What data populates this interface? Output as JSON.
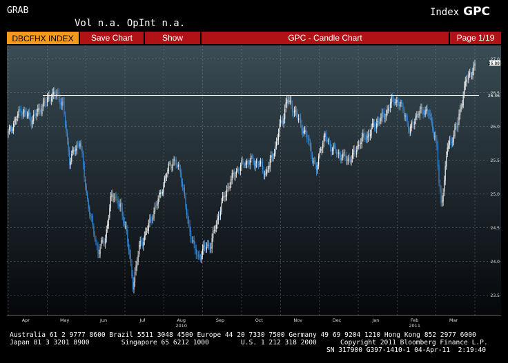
{
  "header": {
    "app_label": "GRAB",
    "security_type": "Index",
    "ticker": "GPC",
    "vol_label": "Vol n.a.",
    "openint_label": "OpInt n.a."
  },
  "toolbar": {
    "ticker_field": "DBCFHX INDEX",
    "save_chart_label": "Save Chart",
    "show_label": "Show",
    "chart_title": "GPC - Candle Chart",
    "page_indicator": "Page 1/19"
  },
  "footer": {
    "line1": "Australia 61 2 9777 8600 Brazil 5511 3048 4500 Europe 44 20 7330 7500 Germany 49 69 9204 1210 Hong Kong 852 2977 6000",
    "line2a": "Japan 81 3 3201 8900        Singapore 65 6212 1000        U.S. 1 212 318 2000",
    "line2b": "Copyright 2011 Bloomberg Finance L.P.",
    "line3": "SN 317900 G397-1410-1 04-Apr-11  2:19:40"
  },
  "colors": {
    "up_candle": "#ffffff",
    "down_candle": "#3b8fe0",
    "title_bar_red": "#b01216",
    "ticker_orange": "#f39a1e",
    "reference_line": "#ffffff"
  },
  "chart_data": {
    "type": "candlestick",
    "title": "GPC - Candle Chart",
    "ylim": [
      23.2,
      27.2
    ],
    "y_ticks": [
      {
        "label": "23.5",
        "value": 23.5
      },
      {
        "label": "24.0",
        "value": 24.0
      },
      {
        "label": "24.5",
        "value": 24.5
      },
      {
        "label": "25.0",
        "value": 25.0
      },
      {
        "label": "25.5",
        "value": 25.5
      },
      {
        "label": "26.0",
        "value": 26.0
      },
      {
        "label": "26.5",
        "value": 26.5
      },
      {
        "label": "27.0",
        "value": 27.0
      }
    ],
    "x_ticks": [
      "Apr",
      "May",
      "Jun",
      "Jul",
      "Aug",
      "Sep",
      "Oct",
      "Nov",
      "Dec",
      "Jan",
      "Feb",
      "Mar"
    ],
    "year_labels": [
      {
        "label": "2010",
        "at_month": "Aug"
      },
      {
        "label": "2011",
        "at_month": "Feb"
      }
    ],
    "reference_line": {
      "value": 26.46,
      "label": "26.46"
    },
    "last_price_label": "26.88",
    "grid": true,
    "anchors": [
      [
        0,
        25.9
      ],
      [
        12,
        26.25
      ],
      [
        22,
        26.1
      ],
      [
        40,
        26.45
      ],
      [
        47,
        26.47
      ],
      [
        52,
        26.3
      ],
      [
        58,
        25.5
      ],
      [
        68,
        25.8
      ],
      [
        74,
        25.0
      ],
      [
        80,
        24.5
      ],
      [
        85,
        24.15
      ],
      [
        92,
        24.35
      ],
      [
        97,
        24.9
      ],
      [
        100,
        25.0
      ],
      [
        106,
        24.8
      ],
      [
        112,
        24.45
      ],
      [
        118,
        23.65
      ],
      [
        124,
        24.2
      ],
      [
        131,
        24.45
      ],
      [
        138,
        24.75
      ],
      [
        144,
        25.0
      ],
      [
        152,
        25.4
      ],
      [
        156,
        25.5
      ],
      [
        163,
        25.35
      ],
      [
        170,
        24.6
      ],
      [
        176,
        24.2
      ],
      [
        180,
        24.05
      ],
      [
        186,
        24.2
      ],
      [
        192,
        24.25
      ],
      [
        196,
        24.5
      ],
      [
        202,
        24.85
      ],
      [
        208,
        25.1
      ],
      [
        214,
        25.3
      ],
      [
        222,
        25.45
      ],
      [
        230,
        25.5
      ],
      [
        238,
        25.45
      ],
      [
        244,
        25.3
      ],
      [
        250,
        25.55
      ],
      [
        254,
        25.75
      ],
      [
        257,
        26.0
      ],
      [
        260,
        26.1
      ],
      [
        264,
        26.4
      ],
      [
        268,
        26.3
      ],
      [
        272,
        26.2
      ],
      [
        278,
        26.0
      ],
      [
        284,
        25.8
      ],
      [
        288,
        25.55
      ],
      [
        292,
        25.35
      ],
      [
        296,
        25.7
      ],
      [
        300,
        25.85
      ],
      [
        306,
        25.7
      ],
      [
        312,
        25.6
      ],
      [
        318,
        25.55
      ],
      [
        322,
        25.5
      ],
      [
        328,
        25.6
      ],
      [
        334,
        25.8
      ],
      [
        340,
        25.85
      ],
      [
        346,
        26.0
      ],
      [
        352,
        26.1
      ],
      [
        358,
        26.2
      ],
      [
        362,
        26.35
      ],
      [
        366,
        26.4
      ],
      [
        370,
        26.35
      ],
      [
        376,
        26.2
      ],
      [
        380,
        25.9
      ],
      [
        384,
        26.1
      ],
      [
        392,
        26.25
      ],
      [
        398,
        26.2
      ],
      [
        402,
        26.0
      ],
      [
        406,
        25.7
      ],
      [
        408,
        25.15
      ],
      [
        410,
        24.85
      ],
      [
        413,
        25.2
      ],
      [
        416,
        25.7
      ],
      [
        420,
        25.8
      ],
      [
        425,
        26.0
      ],
      [
        430,
        26.4
      ],
      [
        434,
        26.7
      ],
      [
        438,
        26.8
      ],
      [
        442,
        26.88
      ]
    ]
  }
}
